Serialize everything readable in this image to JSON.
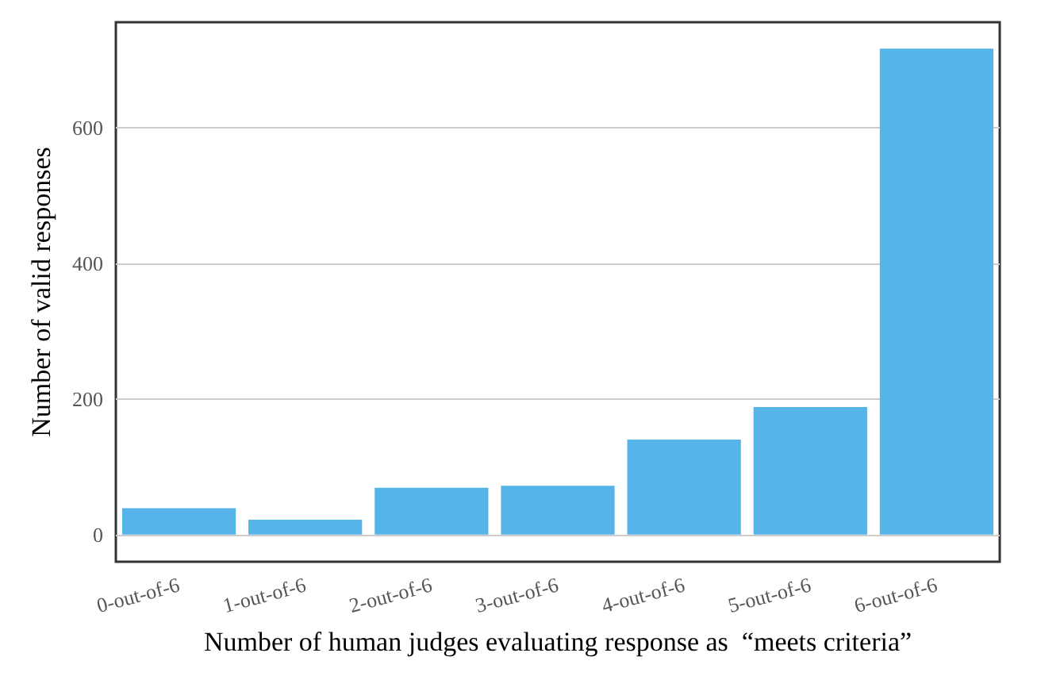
{
  "chart_data": {
    "type": "bar",
    "xlabel": "Number of human judges evaluating response as  “meets criteria”",
    "ylabel": "Number of valid responses",
    "categories": [
      "0-out-of-6",
      "1-out-of-6",
      "2-out-of-6",
      "3-out-of-6",
      "4-out-of-6",
      "5-out-of-6",
      "6-out-of-6"
    ],
    "values": [
      39,
      22,
      69,
      72,
      140,
      188,
      716
    ],
    "color": "#56b4e9",
    "ylim": [
      -40,
      755
    ],
    "yticks": [
      0,
      200,
      400,
      600
    ],
    "grid": "y"
  }
}
